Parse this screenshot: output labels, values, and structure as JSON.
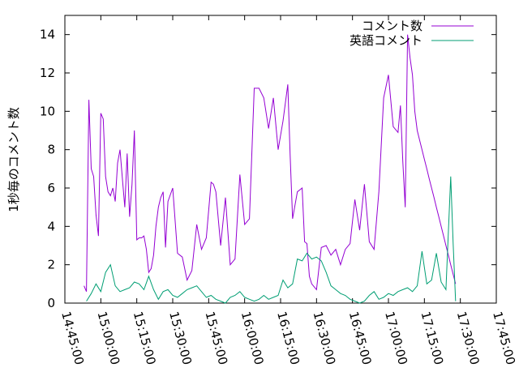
{
  "chart_data": {
    "type": "line",
    "ylabel": "1秒毎のコメント数",
    "ylim": [
      0,
      15
    ],
    "y_ticks": [
      "0",
      "2",
      "4",
      "6",
      "8",
      "10",
      "12",
      "14"
    ],
    "x_ticks": [
      "14:45:00",
      "15:00:00",
      "15:15:00",
      "15:30:00",
      "15:45:00",
      "16:00:00",
      "16:15:00",
      "16:30:00",
      "16:45:00",
      "17:00:00",
      "17:15:00",
      "17:30:00",
      "17:45:00"
    ],
    "xlim": [
      "14:45:00",
      "17:45:00"
    ],
    "legend_position": "top-right",
    "grid": false,
    "series": [
      {
        "name": "コメント数",
        "color": "#9400d3",
        "x": [
          "14:53:00",
          "14:54:00",
          "14:55:00",
          "14:56:00",
          "14:57:00",
          "14:58:00",
          "14:59:00",
          "15:00:00",
          "15:01:00",
          "15:02:00",
          "15:03:00",
          "15:04:00",
          "15:05:00",
          "15:06:00",
          "15:07:00",
          "15:08:00",
          "15:09:00",
          "15:10:00",
          "15:11:00",
          "15:12:00",
          "15:13:00",
          "15:14:00",
          "15:15:00",
          "15:16:00",
          "15:17:00",
          "15:18:00",
          "15:19:00",
          "15:20:00",
          "15:21:00",
          "15:22:00",
          "15:23:00",
          "15:24:00",
          "15:25:00",
          "15:26:00",
          "15:27:00",
          "15:28:00",
          "15:30:00",
          "15:32:00",
          "15:34:00",
          "15:36:00",
          "15:38:00",
          "15:40:00",
          "15:42:00",
          "15:44:00",
          "15:46:00",
          "15:47:00",
          "15:48:00",
          "15:50:00",
          "15:52:00",
          "15:54:00",
          "15:56:00",
          "15:58:00",
          "16:00:00",
          "16:02:00",
          "16:04:00",
          "16:06:00",
          "16:08:00",
          "16:10:00",
          "16:12:00",
          "16:14:00",
          "16:16:00",
          "16:18:00",
          "16:19:00",
          "16:20:00",
          "16:22:00",
          "16:24:00",
          "16:25:00",
          "16:26:00",
          "16:27:00",
          "16:28:00",
          "16:30:00",
          "16:32:00",
          "16:34:00",
          "16:36:00",
          "16:38:00",
          "16:40:00",
          "16:42:00",
          "16:44:00",
          "16:46:00",
          "16:48:00",
          "16:50:00",
          "16:52:00",
          "16:54:00",
          "16:56:00",
          "16:58:00",
          "17:00:00",
          "17:02:00",
          "17:04:00",
          "17:05:00",
          "17:06:00",
          "17:07:00",
          "17:08:00",
          "17:09:00",
          "17:10:00",
          "17:11:00",
          "17:12:00",
          "17:13:00",
          "17:14:00",
          "17:15:00",
          "17:16:00",
          "17:17:00",
          "17:18:00",
          "17:19:00",
          "17:20:00",
          "17:21:00",
          "17:22:00",
          "17:23:00",
          "17:24:00",
          "17:25:00",
          "17:26:00",
          "17:27:00",
          "17:28:00"
        ],
        "values": [
          0.9,
          0.6,
          10.6,
          7.0,
          6.6,
          4.6,
          3.5,
          9.9,
          9.6,
          6.6,
          5.8,
          5.6,
          6.0,
          5.3,
          7.3,
          8.0,
          6.5,
          5.0,
          7.8,
          4.5,
          6.2,
          9.0,
          3.3,
          3.4,
          3.4,
          3.5,
          2.8,
          1.6,
          1.8,
          2.5,
          4.0,
          5.0,
          5.5,
          5.8,
          2.9,
          5.3,
          6.0,
          2.6,
          2.4,
          1.2,
          1.7,
          4.1,
          2.8,
          3.4,
          6.3,
          6.2,
          5.8,
          3.0,
          5.5,
          2.0,
          2.3,
          6.7,
          4.1,
          4.4,
          11.2,
          11.2,
          10.7,
          9.1,
          10.7,
          8.0,
          9.5,
          11.4,
          7.7,
          4.4,
          5.8,
          6.0,
          3.2,
          3.1,
          1.4,
          1.0,
          0.7,
          2.9,
          3.0,
          2.5,
          2.8,
          2.0,
          2.8,
          3.1,
          5.4,
          3.8,
          6.2,
          3.2,
          2.8,
          5.8,
          10.7,
          11.9,
          9.2,
          8.9,
          10.3,
          7.4,
          5.0,
          14.0,
          12.8,
          11.9,
          10.0,
          9.0,
          8.5,
          8.0,
          7.5,
          7.0,
          6.5,
          6.0,
          5.5,
          5.0,
          4.5,
          4.0,
          3.5,
          3.0,
          2.5,
          2.0,
          1.5,
          1.0
        ]
      },
      {
        "name": "英語コメント",
        "color": "#009e73",
        "x": [
          "14:54:00",
          "14:56:00",
          "14:58:00",
          "15:00:00",
          "15:02:00",
          "15:04:00",
          "15:06:00",
          "15:08:00",
          "15:10:00",
          "15:12:00",
          "15:14:00",
          "15:16:00",
          "15:18:00",
          "15:20:00",
          "15:22:00",
          "15:24:00",
          "15:26:00",
          "15:28:00",
          "15:30:00",
          "15:32:00",
          "15:34:00",
          "15:36:00",
          "15:38:00",
          "15:40:00",
          "15:42:00",
          "15:44:00",
          "15:46:00",
          "15:48:00",
          "15:50:00",
          "15:52:00",
          "15:54:00",
          "15:56:00",
          "15:58:00",
          "16:00:00",
          "16:02:00",
          "16:04:00",
          "16:06:00",
          "16:08:00",
          "16:10:00",
          "16:12:00",
          "16:14:00",
          "16:16:00",
          "16:18:00",
          "16:20:00",
          "16:22:00",
          "16:24:00",
          "16:26:00",
          "16:28:00",
          "16:30:00",
          "16:32:00",
          "16:34:00",
          "16:36:00",
          "16:38:00",
          "16:40:00",
          "16:42:00",
          "16:44:00",
          "16:46:00",
          "16:48:00",
          "16:50:00",
          "16:52:00",
          "16:54:00",
          "16:56:00",
          "16:58:00",
          "17:00:00",
          "17:02:00",
          "17:04:00",
          "17:06:00",
          "17:08:00",
          "17:10:00",
          "17:12:00",
          "17:14:00",
          "17:16:00",
          "17:18:00",
          "17:20:00",
          "17:22:00",
          "17:24:00",
          "17:26:00",
          "17:27:00",
          "17:28:00"
        ],
        "values": [
          0.1,
          0.5,
          1.0,
          0.6,
          1.6,
          2.0,
          0.9,
          0.6,
          0.7,
          0.8,
          1.1,
          1.0,
          0.7,
          1.4,
          0.7,
          0.2,
          0.6,
          0.7,
          0.4,
          0.3,
          0.5,
          0.7,
          0.8,
          0.9,
          0.6,
          0.3,
          0.4,
          0.2,
          0.1,
          0.0,
          0.3,
          0.4,
          0.6,
          0.3,
          0.2,
          0.1,
          0.2,
          0.4,
          0.2,
          0.3,
          0.4,
          1.2,
          0.8,
          1.0,
          2.3,
          2.2,
          2.6,
          2.3,
          2.4,
          2.2,
          1.6,
          0.9,
          0.7,
          0.5,
          0.4,
          0.2,
          0.1,
          0.0,
          0.1,
          0.4,
          0.6,
          0.2,
          0.3,
          0.5,
          0.4,
          0.6,
          0.7,
          0.8,
          0.6,
          0.9,
          2.7,
          1.0,
          1.2,
          2.6,
          1.1,
          0.7,
          6.6,
          3.1,
          0.1
        ]
      }
    ]
  }
}
